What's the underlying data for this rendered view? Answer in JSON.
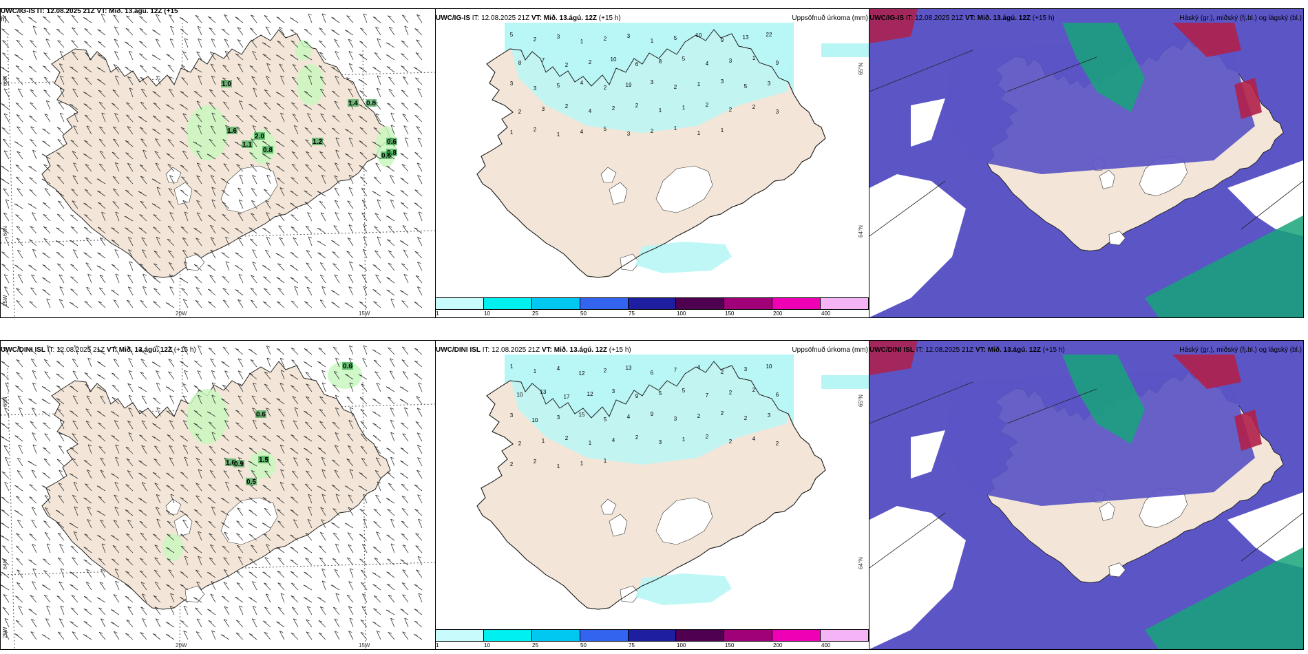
{
  "panels": [
    {
      "id": "p1",
      "title": "UWC/IG-IS IT: 12.08.2025 21Z VT: Mið. 13.ágú. 12Z (+15",
      "title_cont": "h)",
      "right": "",
      "lat_labels": [
        "66N",
        "64N",
        "25W"
      ],
      "lon_labels": [
        "20W",
        "15W"
      ],
      "labels": [
        "1.0",
        "1.6",
        "2.0",
        "1.1",
        "0.8",
        "1.2",
        "1.4",
        "0.8",
        "0.6",
        "0.8",
        "0.6"
      ]
    },
    {
      "id": "p2",
      "src": "UWC/IG-IS",
      "it": "IT: 12.08.2025 21Z",
      "vt": "VT: Mið. 13.ágú. 12Z",
      "lead": "(+15 h)",
      "right": "Uppsöfnuð úrkoma (mm)",
      "side_labels": [
        "65°N",
        "64°N"
      ],
      "labels": [
        "5",
        "2",
        "3",
        "1",
        "2",
        "3",
        "1",
        "5",
        "10",
        "9",
        "13",
        "22",
        "8",
        "7",
        "2",
        "2",
        "10",
        "6",
        "8",
        "5",
        "4",
        "3",
        "1",
        "9",
        "3",
        "3",
        "5",
        "4",
        "2",
        "19",
        "3",
        "2",
        "1",
        "3",
        "5",
        "3",
        "2",
        "3",
        "2",
        "4",
        "2",
        "2",
        "1",
        "1",
        "2",
        "2",
        "2",
        "3",
        "1",
        "2",
        "1",
        "4",
        "5",
        "3",
        "2",
        "1",
        "1",
        "1"
      ]
    },
    {
      "id": "p3",
      "src": "UWC/IG-IS",
      "it": "IT: 12.08.2025 21Z",
      "vt": "VT: Mið. 13.ágú. 12Z",
      "lead": "(+15 h)",
      "right": "Háský (gr.), miðský (fj.bl.) og lágský (bl.)"
    },
    {
      "id": "p4",
      "src": "UWC/DINI ISL",
      "it": "IT: 12.08.2025 21Z",
      "vt": "VT: Mið. 13.ágú. 12Z",
      "lead": "(+15 h)",
      "right": "",
      "lat_labels": [
        "66N",
        "64N",
        "25W"
      ],
      "lon_labels": [
        "20W",
        "15W"
      ],
      "labels": [
        "0.6",
        "0.6",
        "1.6",
        "0.9",
        "1.5",
        "0.5"
      ]
    },
    {
      "id": "p5",
      "src": "UWC/DINI ISL",
      "it": "IT: 12.08.2025 21Z",
      "vt": "VT: Mið. 13.ágú. 12Z",
      "lead": "(+15 h)",
      "right": "Uppsöfnuð úrkoma (mm)",
      "side_labels": [
        "65°N",
        "64°N"
      ],
      "labels": [
        "1",
        "1",
        "4",
        "12",
        "2",
        "13",
        "6",
        "7",
        "4",
        "2",
        "3",
        "10",
        "10",
        "13",
        "17",
        "12",
        "3",
        "9",
        "5",
        "5",
        "7",
        "2",
        "2",
        "6",
        "3",
        "10",
        "3",
        "15",
        "5",
        "4",
        "9",
        "3",
        "2",
        "2",
        "2",
        "3",
        "2",
        "1",
        "2",
        "1",
        "4",
        "2",
        "3",
        "1",
        "2",
        "2",
        "4",
        "2",
        "2",
        "2",
        "1",
        "1",
        "1"
      ]
    },
    {
      "id": "p6",
      "src": "UWC/DINI ISL",
      "it": "IT: 12.08.2025 21Z",
      "vt": "VT: Mið. 13.ágú. 12Z",
      "lead": "(+15 h)",
      "right": "Háský (gr.), miðský (fj.bl.) og lágský (bl.)"
    }
  ],
  "colorbar": {
    "colors": [
      "#c8fbfb",
      "#00f0f0",
      "#00c8f0",
      "#3264f0",
      "#1e1ea0",
      "#500050",
      "#a00078",
      "#f000b4",
      "#f5b4f5"
    ],
    "ticks": [
      "1",
      "10",
      "25",
      "50",
      "75",
      "100",
      "150",
      "200",
      "400"
    ]
  },
  "colors": {
    "land": "#f3e6d8",
    "sea": "#ffffff",
    "precip": "#b8f6f6",
    "light_green": "#c9f7c0",
    "cloud_low": "#5b55c6",
    "cloud_high": "#18a47a",
    "cloud_mid": "#b0204a"
  }
}
